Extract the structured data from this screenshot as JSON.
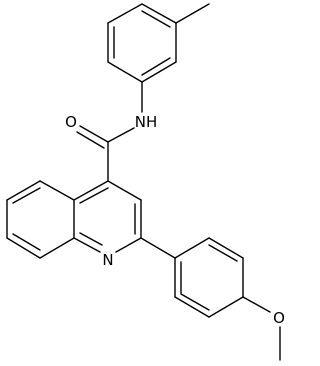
{
  "atoms": {
    "carbonyl_oxygen": "O",
    "amide_nitrogen": "NH",
    "quinoline_nitrogen": "N",
    "methoxy_oxygen": "O"
  }
}
